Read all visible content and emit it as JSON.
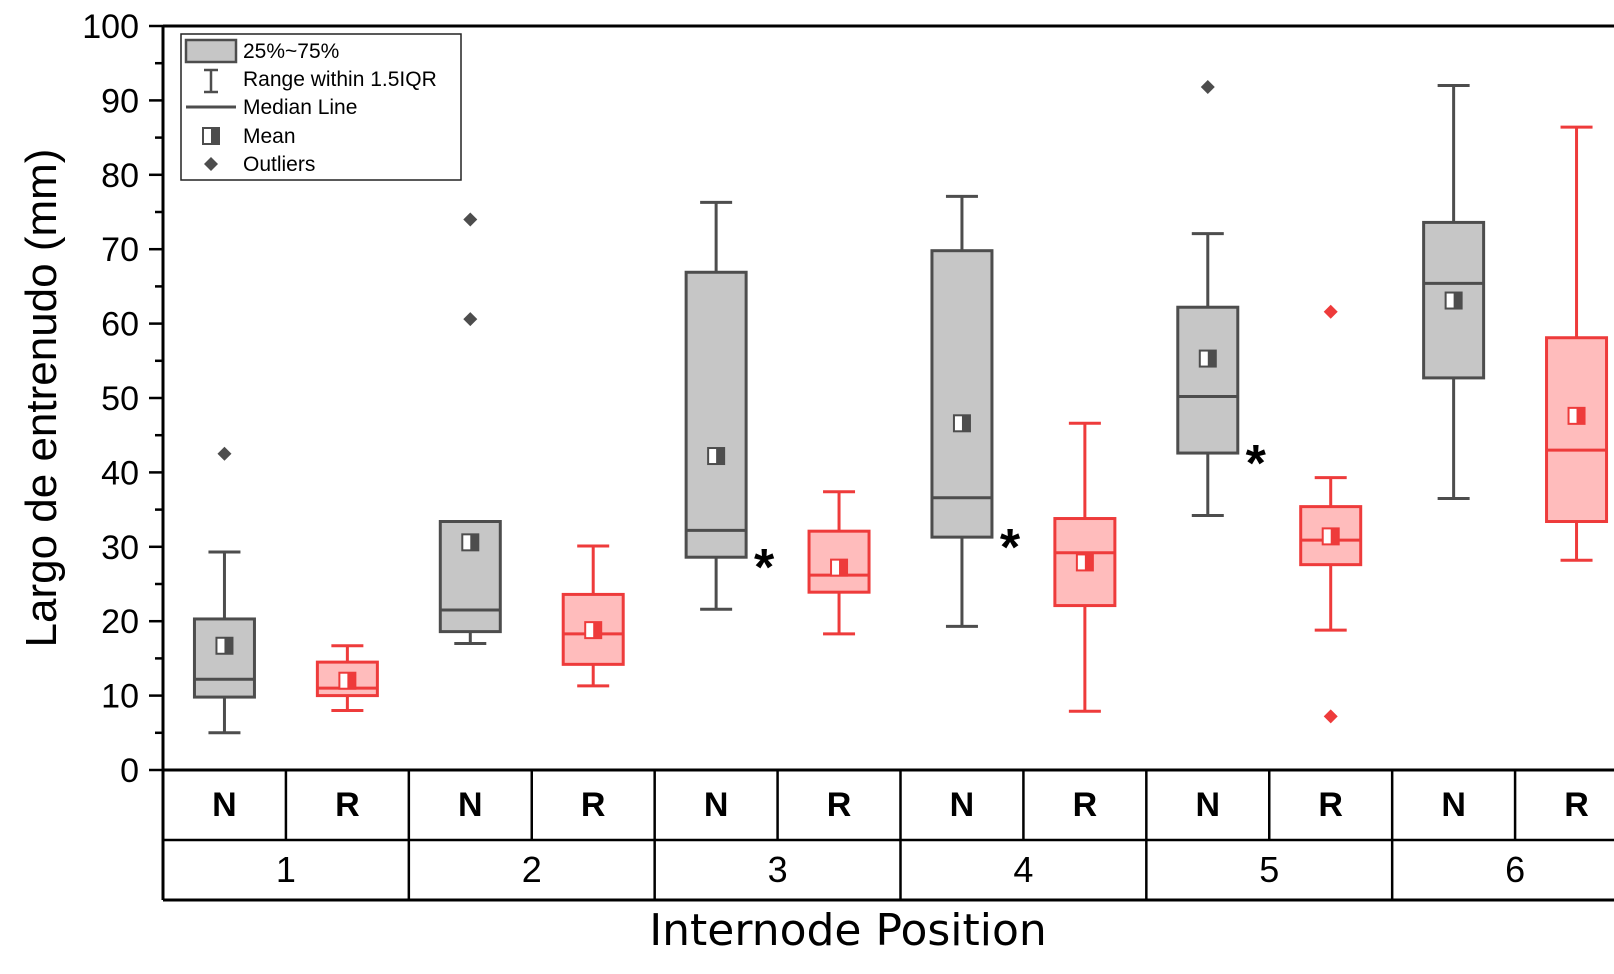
{
  "chart_data": {
    "type": "box",
    "ylabel": "Largo de entrenudo (mm)",
    "xlabel": "Internode Position",
    "ylim": [
      0,
      100
    ],
    "yticks": [
      0,
      10,
      20,
      30,
      40,
      50,
      60,
      70,
      80,
      90,
      100
    ],
    "grid": false,
    "legend_position": "top-left",
    "legend": {
      "box": "25%~75%",
      "whisker": "Range within 1.5IQR",
      "median": "Median Line",
      "mean": "Mean",
      "outliers": "Outliers"
    },
    "group_labels": [
      "N",
      "R"
    ],
    "positions": [
      "1",
      "2",
      "3",
      "4",
      "5",
      "6"
    ],
    "colors": {
      "N": "#4d4d4d",
      "R": "#ee3b3b",
      "N_fill": "#c6c6c6",
      "R_fill": "#ffbcbc"
    },
    "significance_marker": "*",
    "series": [
      {
        "position": "1",
        "group": "N",
        "whisker_low": 5.0,
        "q1": 9.8,
        "median": 12.2,
        "q3": 20.3,
        "whisker_high": 29.3,
        "mean": 16.7,
        "outliers": [
          42.5
        ],
        "significant": false
      },
      {
        "position": "1",
        "group": "R",
        "whisker_low": 8.0,
        "q1": 10.0,
        "median": 11.0,
        "q3": 14.5,
        "whisker_high": 16.7,
        "mean": 12.0,
        "outliers": [],
        "significant": false
      },
      {
        "position": "2",
        "group": "N",
        "whisker_low": 17.0,
        "q1": 18.6,
        "median": 21.5,
        "q3": 33.4,
        "whisker_high": 33.4,
        "mean": 30.6,
        "outliers": [
          60.6,
          74.0
        ],
        "significant": false
      },
      {
        "position": "2",
        "group": "R",
        "whisker_low": 11.3,
        "q1": 14.2,
        "median": 18.3,
        "q3": 23.6,
        "whisker_high": 30.1,
        "mean": 18.8,
        "outliers": [],
        "significant": false
      },
      {
        "position": "3",
        "group": "N",
        "whisker_low": 21.6,
        "q1": 28.6,
        "median": 32.2,
        "q3": 66.9,
        "whisker_high": 76.3,
        "mean": 42.2,
        "outliers": [],
        "significant": true
      },
      {
        "position": "3",
        "group": "R",
        "whisker_low": 18.3,
        "q1": 23.9,
        "median": 26.2,
        "q3": 32.1,
        "whisker_high": 37.4,
        "mean": 27.2,
        "outliers": [],
        "significant": false
      },
      {
        "position": "4",
        "group": "N",
        "whisker_low": 19.3,
        "q1": 31.3,
        "median": 36.6,
        "q3": 69.8,
        "whisker_high": 77.1,
        "mean": 46.6,
        "outliers": [],
        "significant": true
      },
      {
        "position": "4",
        "group": "R",
        "whisker_low": 7.9,
        "q1": 22.1,
        "median": 29.2,
        "q3": 33.8,
        "whisker_high": 46.6,
        "mean": 27.9,
        "outliers": [],
        "significant": false
      },
      {
        "position": "5",
        "group": "N",
        "whisker_low": 34.2,
        "q1": 42.6,
        "median": 50.2,
        "q3": 62.2,
        "whisker_high": 72.1,
        "mean": 55.3,
        "outliers": [
          91.8
        ],
        "significant": true
      },
      {
        "position": "5",
        "group": "R",
        "whisker_low": 18.8,
        "q1": 27.6,
        "median": 30.9,
        "q3": 35.4,
        "whisker_high": 39.3,
        "mean": 31.4,
        "outliers": [
          7.2,
          61.6
        ],
        "significant": false
      },
      {
        "position": "6",
        "group": "N",
        "whisker_low": 36.5,
        "q1": 52.7,
        "median": 65.4,
        "q3": 73.6,
        "whisker_high": 92.0,
        "mean": 63.1,
        "outliers": [],
        "significant": false
      },
      {
        "position": "6",
        "group": "R",
        "whisker_low": 28.2,
        "q1": 33.4,
        "median": 43.0,
        "q3": 58.1,
        "whisker_high": 86.4,
        "mean": 47.6,
        "outliers": [],
        "significant": false
      }
    ]
  }
}
